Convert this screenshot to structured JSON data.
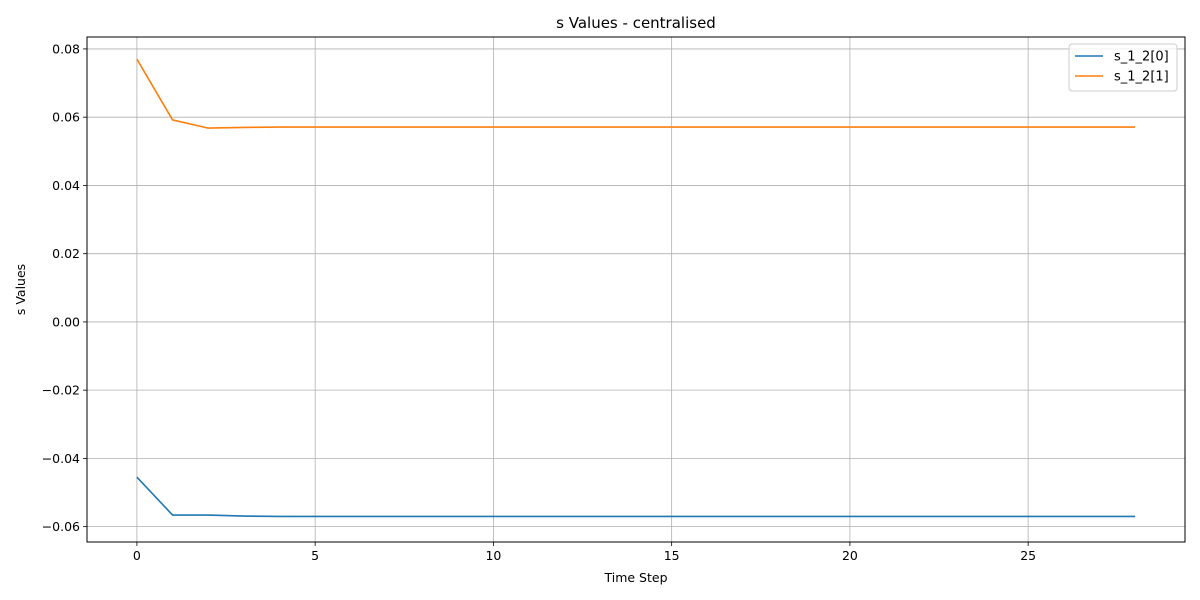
{
  "chart_data": {
    "type": "line",
    "title": "s Values - centralised",
    "xlabel": "Time Step",
    "ylabel": "s Values",
    "xlim": [
      -1.4,
      29.4
    ],
    "ylim": [
      -0.0645,
      0.0835
    ],
    "xticks": [
      0,
      5,
      10,
      15,
      20,
      25
    ],
    "xtick_labels": [
      "0",
      "5",
      "10",
      "15",
      "20",
      "25"
    ],
    "yticks": [
      -0.06,
      -0.04,
      -0.02,
      0.0,
      0.02,
      0.04,
      0.06,
      0.08
    ],
    "ytick_labels": [
      "−0.06",
      "−0.04",
      "−0.02",
      "0.00",
      "0.02",
      "0.04",
      "0.06",
      "0.08"
    ],
    "grid": true,
    "legend_position": "top-right",
    "x": [
      0,
      1,
      2,
      3,
      4,
      5,
      6,
      7,
      8,
      9,
      10,
      11,
      12,
      13,
      14,
      15,
      16,
      17,
      18,
      19,
      20,
      21,
      22,
      23,
      24,
      25,
      26,
      27,
      28
    ],
    "series": [
      {
        "name": "s_1_2[0]",
        "color": "#1f77b4",
        "values": [
          -0.0455,
          -0.0566,
          -0.0566,
          -0.0569,
          -0.057,
          -0.057,
          -0.057,
          -0.057,
          -0.057,
          -0.057,
          -0.057,
          -0.057,
          -0.057,
          -0.057,
          -0.057,
          -0.057,
          -0.057,
          -0.057,
          -0.057,
          -0.057,
          -0.057,
          -0.057,
          -0.057,
          -0.057,
          -0.057,
          -0.057,
          -0.057,
          -0.057,
          -0.057
        ]
      },
      {
        "name": "s_1_2[1]",
        "color": "#ff7f0e",
        "values": [
          0.077,
          0.0592,
          0.0568,
          0.057,
          0.0571,
          0.0571,
          0.0571,
          0.0571,
          0.0571,
          0.0571,
          0.0571,
          0.0571,
          0.0571,
          0.0571,
          0.0571,
          0.0571,
          0.0571,
          0.0571,
          0.0571,
          0.0571,
          0.0571,
          0.0571,
          0.0571,
          0.0571,
          0.0571,
          0.0571,
          0.0571,
          0.0571,
          0.0571
        ]
      }
    ]
  }
}
